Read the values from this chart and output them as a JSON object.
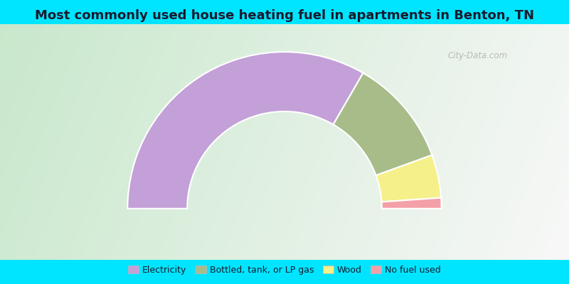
{
  "title": "Most commonly used house heating fuel in apartments in Benton, TN",
  "title_fontsize": 13,
  "title_color": "#1a1a2e",
  "cyan_strip_color": "#00e5ff",
  "watermark": "City-Data.com",
  "segments": [
    {
      "label": "Electricity",
      "value": 66.7,
      "color": "#c3a0d8"
    },
    {
      "label": "Bottled, tank, or LP gas",
      "value": 22.2,
      "color": "#a8bc8a"
    },
    {
      "label": "Wood",
      "value": 8.9,
      "color": "#f5f08a"
    },
    {
      "label": "No fuel used",
      "value": 2.2,
      "color": "#f4a0a8"
    }
  ],
  "inner_r": 0.62,
  "outer_r": 1.0,
  "figsize": [
    8.0,
    4.0
  ],
  "dpi": 100,
  "bg_left_color": "#a8d8b8",
  "bg_right_color": "#e8e8f8",
  "bg_center_color": "#d0e8d0"
}
